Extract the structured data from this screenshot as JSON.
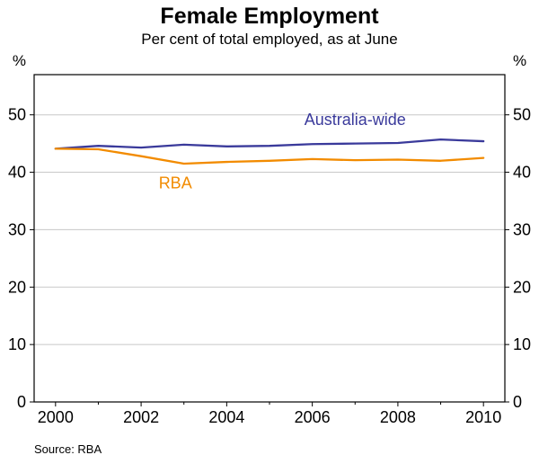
{
  "page": {
    "title": "Female Employment",
    "subtitle": "Per cent of total employed, as at June",
    "source": "Source: RBA"
  },
  "chart_data": {
    "type": "line",
    "title": "Female Employment",
    "subtitle": "Per cent of total employed, as at June",
    "x": [
      2000,
      2001,
      2002,
      2003,
      2004,
      2005,
      2006,
      2007,
      2008,
      2009,
      2010
    ],
    "series": [
      {
        "name": "Australia-wide",
        "color": "#3a3a9b",
        "values": [
          44.1,
          44.6,
          44.3,
          44.8,
          44.5,
          44.6,
          44.9,
          45.0,
          45.1,
          45.7,
          45.4
        ],
        "label_at": {
          "x": 2007,
          "y": 48.2,
          "anchor": "middle"
        }
      },
      {
        "name": "RBA",
        "color": "#f28b00",
        "values": [
          44.1,
          44.0,
          42.8,
          41.5,
          41.8,
          42.0,
          42.3,
          42.1,
          42.2,
          42.0,
          42.5
        ],
        "label_at": {
          "x": 2002.8,
          "y": 37.2,
          "anchor": "middle"
        }
      }
    ],
    "xlim": [
      1999.5,
      2010.5
    ],
    "ylim": [
      0,
      57
    ],
    "yticks": [
      0,
      10,
      20,
      30,
      40,
      50
    ],
    "xtick_labels": [
      2000,
      2002,
      2004,
      2006,
      2008,
      2010
    ],
    "unit_left": "%",
    "unit_right": "%",
    "grid": "horizontal",
    "legend_position": "inline-labels",
    "source": "Source: RBA"
  }
}
